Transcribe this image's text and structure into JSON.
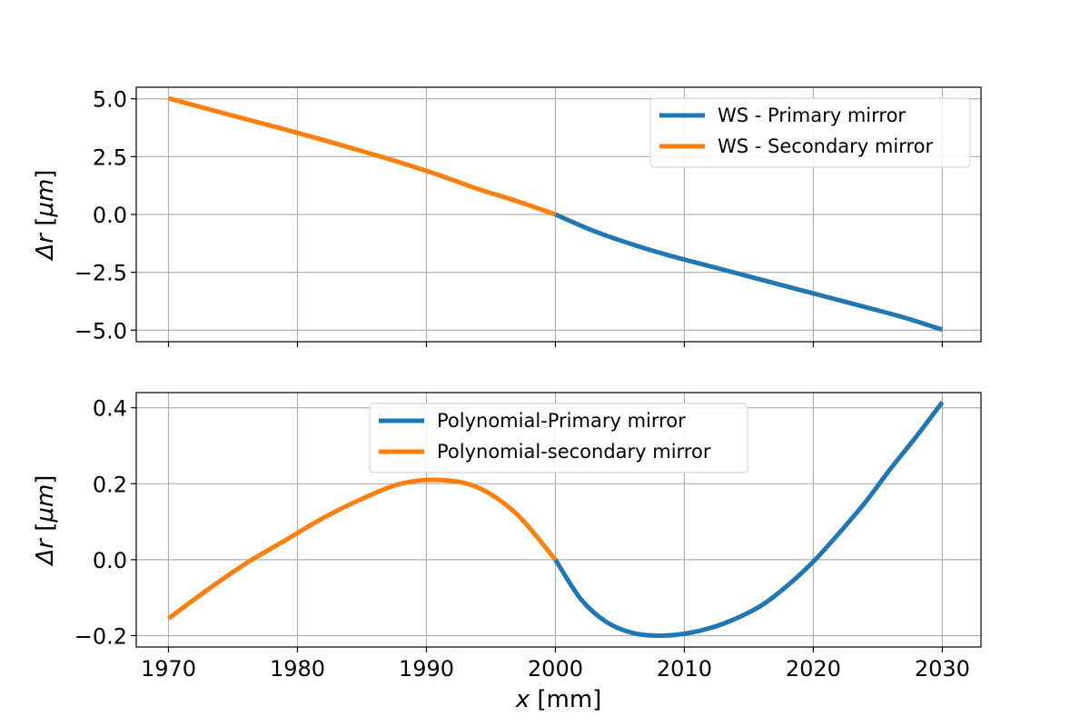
{
  "chart_data": [
    {
      "type": "line",
      "panel": "top",
      "title": "",
      "xlabel": "",
      "ylabel_prefix": "Δr [",
      "ylabel_unit": "μm",
      "ylabel_suffix": "]",
      "xlim": [
        1967.5,
        2033
      ],
      "ylim": [
        -5.5,
        5.5
      ],
      "xticks": [
        1970,
        1980,
        1990,
        2000,
        2010,
        2020,
        2030
      ],
      "yticks": [
        5.0,
        2.5,
        0.0,
        -2.5,
        -5.0
      ],
      "ytick_labels": [
        "5.0",
        "2.5",
        "0.0",
        "−2.5",
        "−5.0"
      ],
      "show_xtick_labels": false,
      "grid": true,
      "legend_position": "upper-right",
      "series": [
        {
          "name": "WS - Primary mirror",
          "color": "#1f77b4",
          "x": [
            2000,
            2003,
            2006,
            2009,
            2012,
            2015,
            2018,
            2021,
            2024,
            2027,
            2030
          ],
          "y": [
            0.0,
            -0.72,
            -1.3,
            -1.8,
            -2.24,
            -2.68,
            -3.12,
            -3.56,
            -4.0,
            -4.45,
            -4.98
          ]
        },
        {
          "name": "WS - Secondary mirror",
          "color": "#ff7f0e",
          "x": [
            1970,
            1973,
            1976,
            1979,
            1982,
            1985,
            1988,
            1991,
            1994,
            1997,
            2000
          ],
          "y": [
            5.02,
            4.57,
            4.12,
            3.68,
            3.22,
            2.74,
            2.24,
            1.7,
            1.1,
            0.58,
            0.0
          ]
        }
      ]
    },
    {
      "type": "line",
      "panel": "bottom",
      "title": "",
      "xlabel_prefix": "x",
      "xlabel_suffix": " [mm]",
      "ylabel_prefix": "Δr [",
      "ylabel_unit": "μm",
      "ylabel_suffix": "]",
      "xlim": [
        1967.5,
        2033
      ],
      "ylim": [
        -0.23,
        0.44
      ],
      "xticks": [
        1970,
        1980,
        1990,
        2000,
        2010,
        2020,
        2030
      ],
      "xtick_labels": [
        "1970",
        "1980",
        "1990",
        "2000",
        "2010",
        "2020",
        "2030"
      ],
      "yticks": [
        0.4,
        0.2,
        0.0,
        -0.2
      ],
      "ytick_labels": [
        "0.4",
        "0.2",
        "0.0",
        "−0.2"
      ],
      "show_xtick_labels": true,
      "grid": true,
      "legend_position": "upper-center",
      "series": [
        {
          "name": "Polynomial-Primary mirror",
          "color": "#1f77b4",
          "x": [
            2000,
            2002,
            2004,
            2006,
            2008,
            2010,
            2012,
            2014,
            2016,
            2018,
            2020,
            2022,
            2024,
            2026,
            2028,
            2030
          ],
          "y": [
            0.0,
            -0.105,
            -0.165,
            -0.193,
            -0.2,
            -0.195,
            -0.18,
            -0.155,
            -0.12,
            -0.068,
            -0.005,
            0.07,
            0.15,
            0.24,
            0.325,
            0.415
          ]
        },
        {
          "name": "Polynomial-secondary mirror",
          "color": "#ff7f0e",
          "x": [
            1970,
            1973,
            1976,
            1979,
            1982,
            1985,
            1988,
            1991,
            1994,
            1997,
            2000
          ],
          "y": [
            -0.155,
            -0.08,
            -0.01,
            0.05,
            0.11,
            0.16,
            0.2,
            0.21,
            0.19,
            0.12,
            0.0
          ]
        }
      ]
    }
  ]
}
